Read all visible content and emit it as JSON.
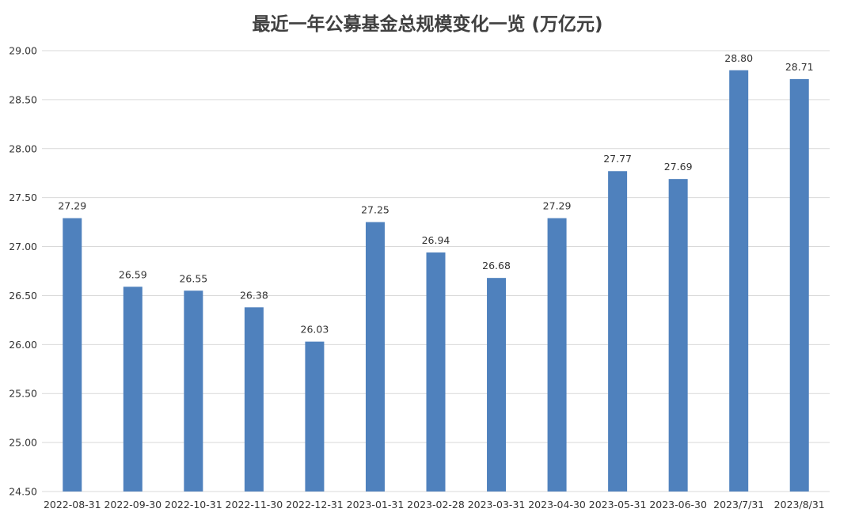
{
  "chart_data": {
    "type": "bar",
    "title": "最近一年公募基金总规模变化一览 (万亿元)",
    "xlabel": "",
    "ylabel": "",
    "categories": [
      "2022-08-31",
      "2022-09-30",
      "2022-10-31",
      "2022-11-30",
      "2022-12-31",
      "2023-01-31",
      "2023-02-28",
      "2023-03-31",
      "2023-04-30",
      "2023-05-31",
      "2023-06-30",
      "2023/7/31",
      "2023/8/31"
    ],
    "values": [
      27.29,
      26.59,
      26.55,
      26.38,
      26.03,
      27.25,
      26.94,
      26.68,
      27.29,
      27.77,
      27.69,
      28.8,
      28.71
    ],
    "data_labels": [
      "27.29",
      "26.59",
      "26.55",
      "26.38",
      "26.03",
      "27.25",
      "26.94",
      "26.68",
      "27.29",
      "27.77",
      "27.69",
      "28.80",
      "28.71"
    ],
    "ylim": [
      24.5,
      29.0
    ],
    "yticks": [
      "24.50",
      "25.00",
      "25.50",
      "26.00",
      "26.50",
      "27.00",
      "27.50",
      "28.00",
      "28.50",
      "29.00"
    ],
    "grid": true,
    "legend": "none",
    "bar_color": "#4f81bd"
  }
}
